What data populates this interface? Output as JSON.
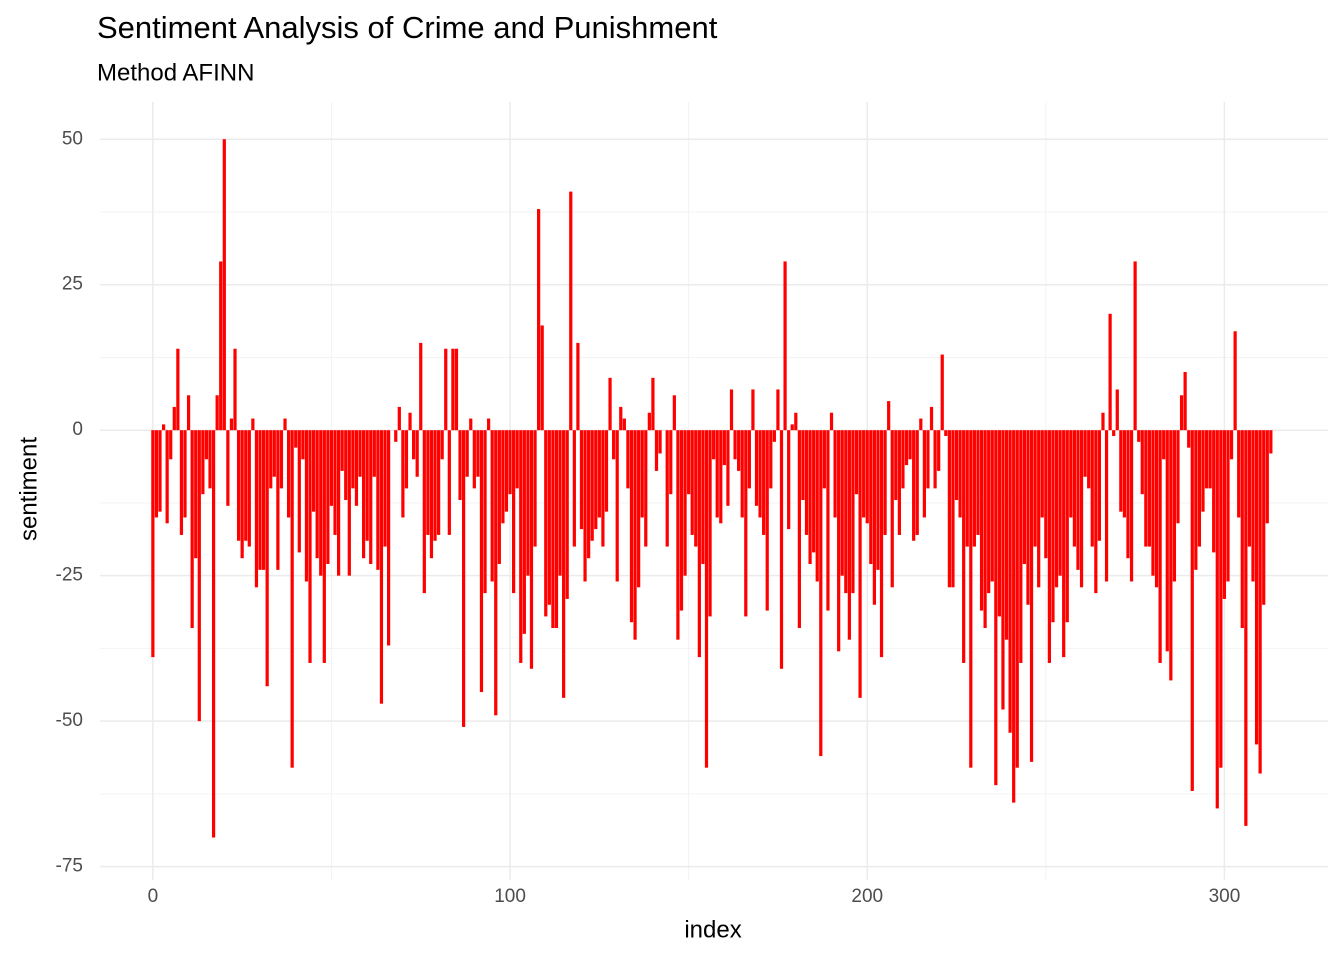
{
  "chart_data": {
    "type": "bar",
    "title": "Sentiment Analysis of Crime and Punishment",
    "subtitle": "Method AFINN",
    "x_label": "index",
    "y_label": "sentiment",
    "color": "#ff0000",
    "grid": true,
    "xlim": [
      -14.8,
      329
    ],
    "xticks": [
      0,
      100,
      200,
      300
    ],
    "x_minor_ticks": [
      50,
      150,
      250
    ],
    "ylim": [
      -77.3,
      56.4
    ],
    "yticks": [
      -75,
      -50,
      -25,
      0,
      25,
      50
    ],
    "y_minor_ticks": [
      -62.5,
      -37.5,
      -12.5,
      12.5,
      37.5
    ],
    "x": [
      0,
      1,
      2,
      3,
      4,
      5,
      6,
      7,
      8,
      9,
      10,
      11,
      12,
      13,
      14,
      15,
      16,
      17,
      18,
      19,
      20,
      21,
      22,
      23,
      24,
      25,
      26,
      27,
      28,
      29,
      30,
      31,
      32,
      33,
      34,
      35,
      36,
      37,
      38,
      39,
      40,
      41,
      42,
      43,
      44,
      45,
      46,
      47,
      48,
      49,
      50,
      51,
      52,
      53,
      54,
      55,
      56,
      57,
      58,
      59,
      60,
      61,
      62,
      63,
      64,
      65,
      66,
      67,
      68,
      69,
      70,
      71,
      72,
      73,
      74,
      75,
      76,
      77,
      78,
      79,
      80,
      81,
      82,
      83,
      84,
      85,
      86,
      87,
      88,
      89,
      90,
      91,
      92,
      93,
      94,
      95,
      96,
      97,
      98,
      99,
      100,
      101,
      102,
      103,
      104,
      105,
      106,
      107,
      108,
      109,
      110,
      111,
      112,
      113,
      114,
      115,
      116,
      117,
      118,
      119,
      120,
      121,
      122,
      123,
      124,
      125,
      126,
      127,
      128,
      129,
      130,
      131,
      132,
      133,
      134,
      135,
      136,
      137,
      138,
      139,
      140,
      141,
      142,
      143,
      144,
      145,
      146,
      147,
      148,
      149,
      150,
      151,
      152,
      153,
      154,
      155,
      156,
      157,
      158,
      159,
      160,
      161,
      162,
      163,
      164,
      165,
      166,
      167,
      168,
      169,
      170,
      171,
      172,
      173,
      174,
      175,
      176,
      177,
      178,
      179,
      180,
      181,
      182,
      183,
      184,
      185,
      186,
      187,
      188,
      189,
      190,
      191,
      192,
      193,
      194,
      195,
      196,
      197,
      198,
      199,
      200,
      201,
      202,
      203,
      204,
      205,
      206,
      207,
      208,
      209,
      210,
      211,
      212,
      213,
      214,
      215,
      216,
      217,
      218,
      219,
      220,
      221,
      222,
      223,
      224,
      225,
      226,
      227,
      228,
      229,
      230,
      231,
      232,
      233,
      234,
      235,
      236,
      237,
      238,
      239,
      240,
      241,
      242,
      243,
      244,
      245,
      246,
      247,
      248,
      249,
      250,
      251,
      252,
      253,
      254,
      255,
      256,
      257,
      258,
      259,
      260,
      261,
      262,
      263,
      264,
      265,
      266,
      267,
      268,
      269,
      270,
      271,
      272,
      273,
      274,
      275,
      276,
      277,
      278,
      279,
      280,
      281,
      282,
      283,
      284,
      285,
      286,
      287,
      288,
      289,
      290,
      291,
      292,
      293,
      294,
      295,
      296,
      297,
      298,
      299,
      300,
      301,
      302,
      303,
      304,
      305,
      306,
      307,
      308,
      309,
      310,
      311,
      312,
      313
    ],
    "values": [
      -39,
      -15,
      -14,
      1,
      -16,
      -5,
      4,
      14,
      -18,
      -15,
      6,
      -34,
      -22,
      -50,
      -11,
      -5,
      -10,
      -70,
      6,
      29,
      50,
      -13,
      2,
      14,
      -19,
      -22,
      -19,
      -20,
      2,
      -27,
      -24,
      -24,
      -44,
      -10,
      -8,
      -24,
      -10,
      2,
      -15,
      -58,
      -3,
      -21,
      -5,
      -26,
      -40,
      -14,
      -22,
      -25,
      -40,
      -23,
      -13,
      -18,
      -25,
      -7,
      -12,
      -25,
      -10,
      -13,
      -8,
      -22,
      -19,
      -23,
      -8,
      -24,
      -47,
      -20,
      -37,
      0,
      -2,
      4,
      -15,
      -10,
      3,
      -5,
      -8,
      15,
      -28,
      -18,
      -22,
      -19,
      -18,
      -5,
      14,
      -18,
      14,
      14,
      -12,
      -51,
      -8,
      2,
      -10,
      -8,
      -45,
      -28,
      2,
      -26,
      -49,
      -23,
      -16,
      -14,
      -11,
      -28,
      -10,
      -40,
      -35,
      -25,
      -41,
      -20,
      38,
      18,
      -32,
      -30,
      -34,
      -34,
      -25,
      -46,
      -29,
      41,
      -20,
      15,
      -17,
      -26,
      -22,
      -19,
      -17,
      -15,
      -20,
      -14,
      9,
      -5,
      -26,
      4,
      2,
      -10,
      -33,
      -36,
      -27,
      -15,
      -20,
      3,
      9,
      -7,
      -4,
      0,
      -20,
      -11,
      6,
      -36,
      -31,
      -25,
      -11,
      -18,
      -20,
      -39,
      -23,
      -58,
      -32,
      -5,
      -15,
      -16,
      -6,
      -13,
      7,
      -5,
      -7,
      -15,
      -32,
      -10,
      7,
      -13,
      -15,
      -18,
      -31,
      -10,
      -2,
      7,
      -41,
      29,
      -17,
      1,
      3,
      -34,
      -12,
      -18,
      -23,
      -21,
      -26,
      -56,
      -10,
      -31,
      3,
      -15,
      -38,
      -25,
      -28,
      -36,
      -28,
      -11,
      -46,
      -15,
      -16,
      -23,
      -30,
      -24,
      -39,
      -18,
      5,
      -27,
      -12,
      -18,
      -10,
      -6,
      -5,
      -19,
      -18,
      2,
      -15,
      -10,
      4,
      -10,
      -7,
      13,
      -1,
      -27,
      -27,
      -12,
      -15,
      -40,
      -20,
      -58,
      -20,
      -18,
      -31,
      -34,
      -28,
      -26,
      -61,
      -32,
      -48,
      -36,
      -52,
      -64,
      -58,
      -40,
      -23,
      -30,
      -57,
      -20,
      -27,
      -15,
      -22,
      -40,
      -33,
      -27,
      -25,
      -39,
      -33,
      -15,
      -20,
      -24,
      -27,
      -8,
      -10,
      -20,
      -28,
      -19,
      3,
      -26,
      20,
      -1,
      7,
      -14,
      -15,
      -22,
      -26,
      29,
      -2,
      -11,
      -20,
      -20,
      -25,
      -27,
      -40,
      -5,
      -38,
      -43,
      -26,
      -16,
      6,
      10,
      -3,
      -62,
      -24,
      -20,
      -14,
      -10,
      -10,
      -21,
      -65,
      -58,
      -29,
      -26,
      -5,
      17,
      -15,
      -34,
      -68,
      -20,
      -26,
      -54,
      -59,
      -30,
      -16,
      -4
    ]
  }
}
